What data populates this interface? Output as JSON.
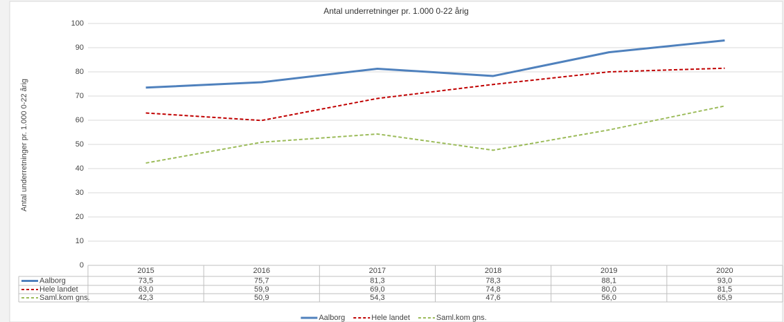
{
  "chart_data": {
    "type": "line",
    "title": "Antal underretninger pr. 1.000 0-22 årig",
    "y_label": "Antal underretninger pr. 1.000 0-22 årig",
    "categories": [
      "2015",
      "2016",
      "2017",
      "2018",
      "2019",
      "2020"
    ],
    "series": [
      {
        "name": "Aalborg",
        "color": "#4f81bd",
        "dash": false,
        "values": [
          73.5,
          75.7,
          81.3,
          78.3,
          88.1,
          93.0
        ],
        "value_labels": [
          "73,5",
          "75,7",
          "81,3",
          "78,3",
          "88,1",
          "93,0"
        ]
      },
      {
        "name": "Hele landet",
        "color": "#c00000",
        "dash": true,
        "values": [
          63.0,
          59.9,
          69.0,
          74.8,
          80.0,
          81.5
        ],
        "value_labels": [
          "63,0",
          "59,9",
          "69,0",
          "74,8",
          "80,0",
          "81,5"
        ]
      },
      {
        "name": "Saml.kom gns.",
        "color": "#9bbb59",
        "dash": true,
        "values": [
          42.3,
          50.9,
          54.3,
          47.6,
          56.0,
          65.9
        ],
        "value_labels": [
          "42,3",
          "50,9",
          "54,3",
          "47,6",
          "56,0",
          "65,9"
        ]
      }
    ],
    "ylim": [
      0,
      100
    ],
    "yticks": [
      0,
      10,
      20,
      30,
      40,
      50,
      60,
      70,
      80,
      90,
      100
    ],
    "grid": true,
    "legend": "bottom"
  }
}
